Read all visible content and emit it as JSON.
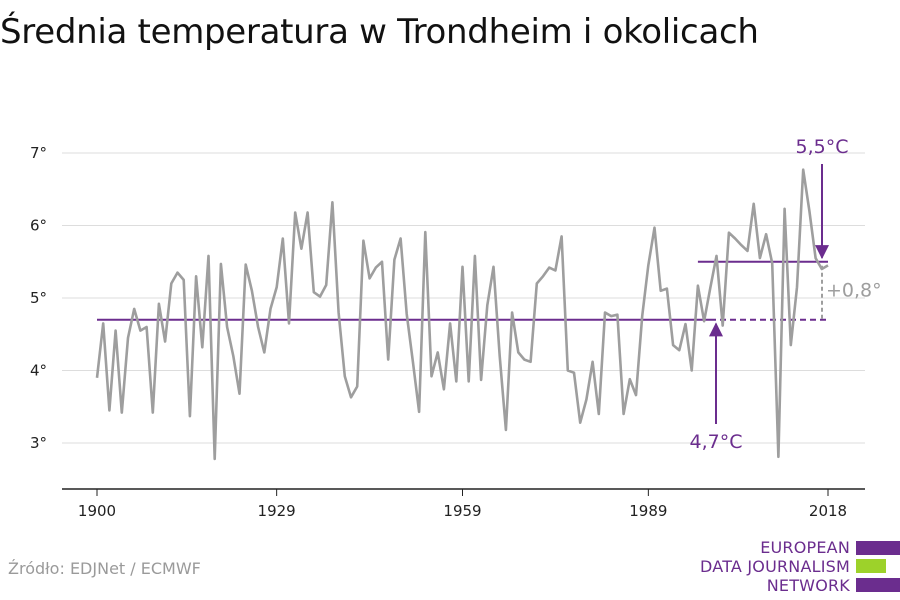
{
  "title": "Średnia temperatura w Trondheim i okolicach",
  "source": "Źródło: EDJNet / ECMWF",
  "logo": {
    "line1": "EUROPEAN",
    "line2": "DATA JOURNALISM",
    "line3": "NETWORK",
    "colors": [
      "#6b2d8e",
      "#9dd22a",
      "#6b2d8e"
    ]
  },
  "colors": {
    "series": "#9e9e9e",
    "accent": "#6b2d8e",
    "grid": "#dddddd",
    "axis": "#222222"
  },
  "chart_data": {
    "type": "line",
    "title": "Średnia temperatura w Trondheim i okolicach",
    "xlabel": "",
    "ylabel": "",
    "xlim": [
      1900,
      2018
    ],
    "ylim": [
      2.4,
      7.4
    ],
    "x_ticks": [
      1900,
      1929,
      1959,
      1989,
      2018
    ],
    "x_tick_labels": [
      "1900",
      "1929",
      "1959",
      "1989",
      "2018"
    ],
    "y_ticks": [
      3,
      4,
      5,
      6,
      7
    ],
    "y_tick_labels": [
      "3°",
      "4°",
      "5°",
      "6°",
      "7°"
    ],
    "grid": "horizontal",
    "series": [
      {
        "x": [
          1900,
          1901,
          1902,
          1903,
          1904,
          1905,
          1906,
          1907,
          1908,
          1909,
          1910,
          1911,
          1912,
          1913,
          1914,
          1915,
          1916,
          1917,
          1918,
          1919,
          1920,
          1921,
          1922,
          1923,
          1924,
          1925,
          1926,
          1927,
          1928,
          1929,
          1930,
          1931,
          1932,
          1933,
          1934,
          1935,
          1936,
          1937,
          1938,
          1939,
          1940,
          1941,
          1942,
          1943,
          1944,
          1945,
          1946,
          1947,
          1948,
          1949,
          1950,
          1951,
          1952,
          1953,
          1954,
          1955,
          1956,
          1957,
          1958,
          1959,
          1960,
          1961,
          1962,
          1963,
          1964,
          1965,
          1966,
          1967,
          1968,
          1969,
          1970,
          1971,
          1972,
          1973,
          1974,
          1975,
          1976,
          1977,
          1978,
          1979,
          1980,
          1981,
          1982,
          1983,
          1984,
          1985,
          1986,
          1987,
          1988,
          1989,
          1990,
          1991,
          1992,
          1993,
          1994,
          1995,
          1996,
          1997,
          1998,
          1999,
          2000,
          2001,
          2002,
          2003,
          2004,
          2005,
          2006,
          2007,
          2008,
          2009,
          2010,
          2011,
          2012,
          2013,
          2014,
          2015,
          2016,
          2017,
          2018
        ],
        "values": [
          3.9,
          4.65,
          3.45,
          4.55,
          3.42,
          4.45,
          4.85,
          4.55,
          4.6,
          3.42,
          4.92,
          4.4,
          5.2,
          5.35,
          5.25,
          3.37,
          5.3,
          4.32,
          5.58,
          2.78,
          5.47,
          4.6,
          4.2,
          3.68,
          5.46,
          5.1,
          4.6,
          4.25,
          4.85,
          5.15,
          5.82,
          4.65,
          6.18,
          5.68,
          6.18,
          5.08,
          5.02,
          5.18,
          6.32,
          4.8,
          3.92,
          3.63,
          3.78,
          5.79,
          5.27,
          5.42,
          5.5,
          4.15,
          5.53,
          5.82,
          4.78,
          4.12,
          3.43,
          5.91,
          3.92,
          4.25,
          3.74,
          4.65,
          3.85,
          5.43,
          3.85,
          5.58,
          3.87,
          4.9,
          5.43,
          4.2,
          3.18,
          4.8,
          4.25,
          4.15,
          4.12,
          5.2,
          5.3,
          5.42,
          5.38,
          5.85,
          4.0,
          3.97,
          3.28,
          3.6,
          4.12,
          3.4,
          4.8,
          4.75,
          4.77,
          3.4,
          3.88,
          3.66,
          4.75,
          5.45,
          5.97,
          5.1,
          5.13,
          4.35,
          4.28,
          4.64,
          4.0,
          5.17,
          4.68,
          5.14,
          5.58,
          4.62,
          5.9,
          5.82,
          5.73,
          5.65,
          6.3,
          5.55,
          5.88,
          5.48,
          2.81,
          6.23,
          4.35,
          5.15,
          6.77,
          6.2,
          5.55,
          5.4,
          5.45
        ]
      }
    ],
    "averages": [
      {
        "value": 4.7,
        "label": "4,7°C",
        "x_from": 1900,
        "x_to": 2018
      },
      {
        "value": 5.5,
        "label": "5,5°C",
        "x_from": 1997,
        "x_to": 2018
      }
    ],
    "difference_label": "+0,8°"
  }
}
